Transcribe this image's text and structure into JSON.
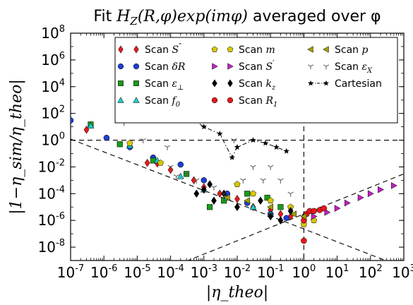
{
  "chart_data": {
    "type": "scatter",
    "title": "Fit H_Z(R,φ) exp(imφ) averaged over φ",
    "title_parts": {
      "prefix": "Fit ",
      "math": "H",
      "sub": "Z",
      "args": "(R,φ)",
      "exp": "exp(imφ)",
      "suffix": " averaged over φ"
    },
    "xlabel": "|η_theo|",
    "ylabel": "|1−η_sim/η_theo|",
    "x_scale": "log",
    "y_scale": "log",
    "xlim": [
      1e-07,
      1000
    ],
    "ylim": [
      1e-09,
      100000000.0
    ],
    "x_tick_exponents": [
      "-7",
      "-6",
      "-5",
      "-4",
      "-3",
      "-2",
      "-1",
      "0",
      "1",
      "2",
      "3"
    ],
    "y_tick_exponents": [
      "-8",
      "-6",
      "-4",
      "-2",
      "0",
      "2",
      "4",
      "6",
      "8"
    ],
    "tick_base": "10",
    "grid": false,
    "legend_position": "top-right",
    "reference_lines": [
      {
        "kind": "horizontal",
        "y": 1,
        "style": "dashed"
      },
      {
        "kind": "vertical",
        "x": 1,
        "style": "dashed"
      },
      {
        "kind": "power-law",
        "points": [
          [
            1e-07,
            1.2
          ],
          [
            1000,
            3e-10
          ]
        ],
        "style": "dashed"
      },
      {
        "kind": "power-law",
        "points": [
          [
            0.0001,
            3e-10
          ],
          [
            1000,
            0.003
          ]
        ],
        "style": "dashed"
      }
    ],
    "series": [
      {
        "name": "Scan S''",
        "label_parts": [
          "Scan ",
          "S",
          "″",
          ""
        ],
        "marker": "diamond",
        "color": "#e41a1c",
        "x": [
          3e-07,
          2e-05,
          4e-05,
          0.0001,
          0.0005,
          0.001,
          0.003,
          0.01,
          0.03,
          0.1,
          0.2,
          0.4
        ],
        "y": [
          6,
          0.02,
          0.018,
          0.006,
          0.001,
          0.0003,
          0.0001,
          4e-05,
          1e-05,
          6e-06,
          3e-06,
          2e-06
        ]
      },
      {
        "name": "Scan δR",
        "label_parts": [
          "Scan ",
          "δR",
          "",
          ""
        ],
        "marker": "circle",
        "color": "#1f3fd0",
        "x": [
          1e-07,
          1.2e-06,
          6e-06,
          3e-05,
          0.0002,
          0.001,
          0.005,
          0.02,
          0.1,
          0.3
        ],
        "y": [
          30,
          1.5,
          0.3,
          0.05,
          0.015,
          0.001,
          0.0001,
          2e-05,
          3e-06,
          1.5e-06
        ]
      },
      {
        "name": "Scan ε⊥",
        "label_parts": [
          "Scan ",
          "ε",
          "",
          "⊥"
        ],
        "marker": "square",
        "color": "#1a9a1a",
        "x": [
          4e-07,
          3e-06,
          3e-05,
          0.0003,
          0.0015,
          0.004,
          0.02,
          0.08,
          0.2
        ],
        "y": [
          15,
          0.5,
          0.03,
          0.003,
          1e-05,
          3e-05,
          0.0001,
          5e-05,
          1e-05
        ]
      },
      {
        "name": "Scan f0",
        "label_parts": [
          "Scan ",
          "f",
          "",
          "0"
        ],
        "marker": "triangle-up",
        "color": "#20c8c8",
        "x": [
          4e-07,
          6e-06,
          4e-05,
          0.0002,
          0.001,
          0.005,
          0.03,
          0.1
        ],
        "y": [
          12,
          0.4,
          0.03,
          0.002,
          0.0002,
          5e-05,
          1e-05,
          3e-06
        ]
      },
      {
        "name": "Scan m",
        "label_parts": [
          "Scan ",
          "m",
          "",
          ""
        ],
        "marker": "pentagon",
        "color": "#d8c800",
        "x": [
          6e-06,
          5e-05,
          0.01,
          0.03,
          0.1,
          0.4,
          1,
          2
        ],
        "y": [
          0.6,
          0.02,
          0.0005,
          0.0001,
          3e-05,
          1e-05,
          5e-07,
          1e-06
        ]
      },
      {
        "name": "Scan S'",
        "label_parts": [
          "Scan ",
          "S",
          "′",
          ""
        ],
        "marker": "triangle-right",
        "color": "#c020c0",
        "x": [
          2,
          5,
          10,
          20,
          50,
          100,
          200,
          500
        ],
        "y": [
          2e-06,
          4e-06,
          8e-06,
          2e-05,
          5e-05,
          0.0001,
          0.0002,
          0.0004
        ]
      },
      {
        "name": "Scan kz",
        "label_parts": [
          "Scan ",
          "k",
          "",
          "z"
        ],
        "marker": "diamond",
        "color": "#000000",
        "x": [
          0.0006,
          0.001,
          0.0015,
          0.002,
          0.004,
          0.01,
          0.05,
          0.1,
          0.2,
          0.4,
          1
        ],
        "y": [
          0.0001,
          0.0002,
          0.0005,
          3e-05,
          0.0001,
          1e-05,
          3e-05,
          2e-06,
          1e-06,
          5e-06,
          2e-06
        ]
      },
      {
        "name": "Scan R1",
        "label_parts": [
          "Scan ",
          "R",
          "",
          "1"
        ],
        "marker": "circle",
        "color": "#e41a1c",
        "x": [
          1,
          1.2,
          1.5,
          2,
          3,
          4,
          1
        ],
        "y": [
          1e-06,
          3e-06,
          5e-06,
          5e-06,
          6e-06,
          8e-06,
          3e-08
        ]
      },
      {
        "name": "Scan p",
        "label_parts": [
          "Scan ",
          "p",
          "",
          ""
        ],
        "marker": "triangle-left",
        "color": "#a0a000",
        "x": [
          0.005,
          0.02,
          0.1,
          0.5,
          1
        ],
        "y": [
          5e-05,
          3e-05,
          1e-05,
          3e-06,
          2e-06
        ]
      },
      {
        "name": "Scan εX",
        "label_parts": [
          "Scan ",
          "ε",
          "",
          "X"
        ],
        "marker": "tri-down",
        "color": "#555555",
        "x": [
          4e-06,
          1.5e-05,
          8e-05,
          0.0001,
          0.00015,
          0.0003,
          0.0006,
          0.002,
          0.004,
          0.008,
          0.015,
          0.03,
          0.06,
          0.1,
          0.2,
          0.4
        ],
        "y": [
          20,
          1,
          0.3,
          0.01,
          0.002,
          0.003,
          0.001,
          0.0003,
          0.0001,
          1,
          0.001,
          0.01,
          0.001,
          0.01,
          0.001,
          0.0001
        ]
      },
      {
        "name": "Cartesian",
        "label_parts": [
          "Cartesian",
          "",
          "",
          ""
        ],
        "marker": "star",
        "color": "#000000",
        "line": "dashdot",
        "x": [
          0.00025,
          0.001,
          0.003,
          0.007,
          0.01,
          0.03,
          0.07,
          0.15,
          0.3
        ],
        "y": [
          100,
          10,
          3,
          0.05,
          0.3,
          1,
          0.6,
          0.3,
          0.15
        ]
      }
    ]
  }
}
